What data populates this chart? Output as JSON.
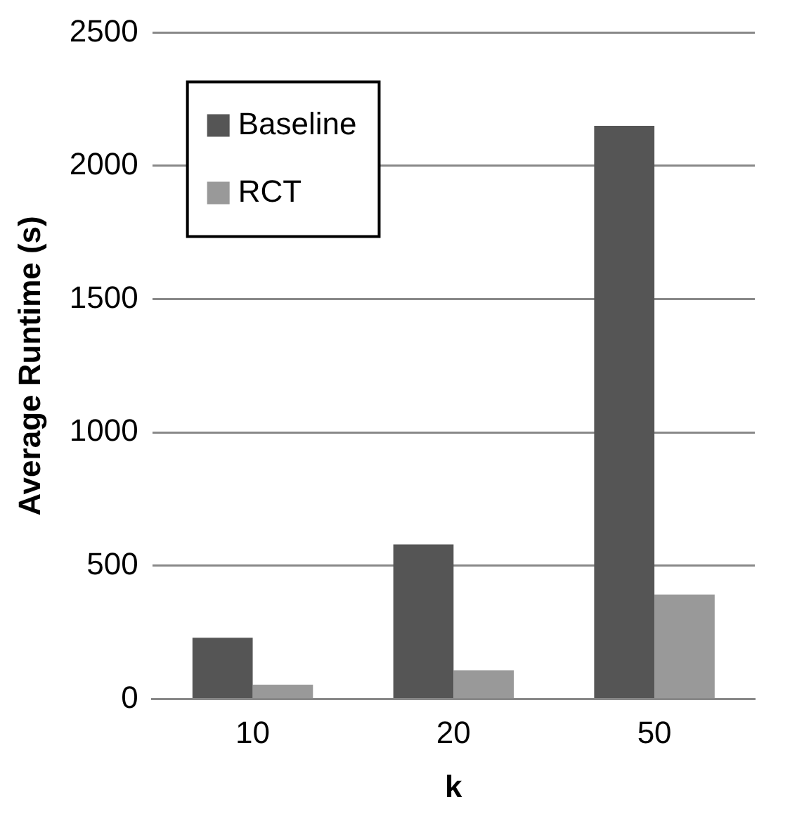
{
  "chart_data": {
    "type": "bar",
    "xlabel": "k",
    "ylabel": "Average Runtime (s)",
    "categories": [
      "10",
      "20",
      "50"
    ],
    "series": [
      {
        "name": "Baseline",
        "color": "#555555",
        "values": [
          230,
          580,
          2150
        ]
      },
      {
        "name": "RCT",
        "color": "#999999",
        "values": [
          54,
          108,
          392
        ]
      }
    ],
    "ylim": [
      0,
      2500
    ],
    "yticks": [
      0,
      500,
      1000,
      1500,
      2000,
      2500
    ],
    "grid": "y",
    "legend": "top left"
  }
}
